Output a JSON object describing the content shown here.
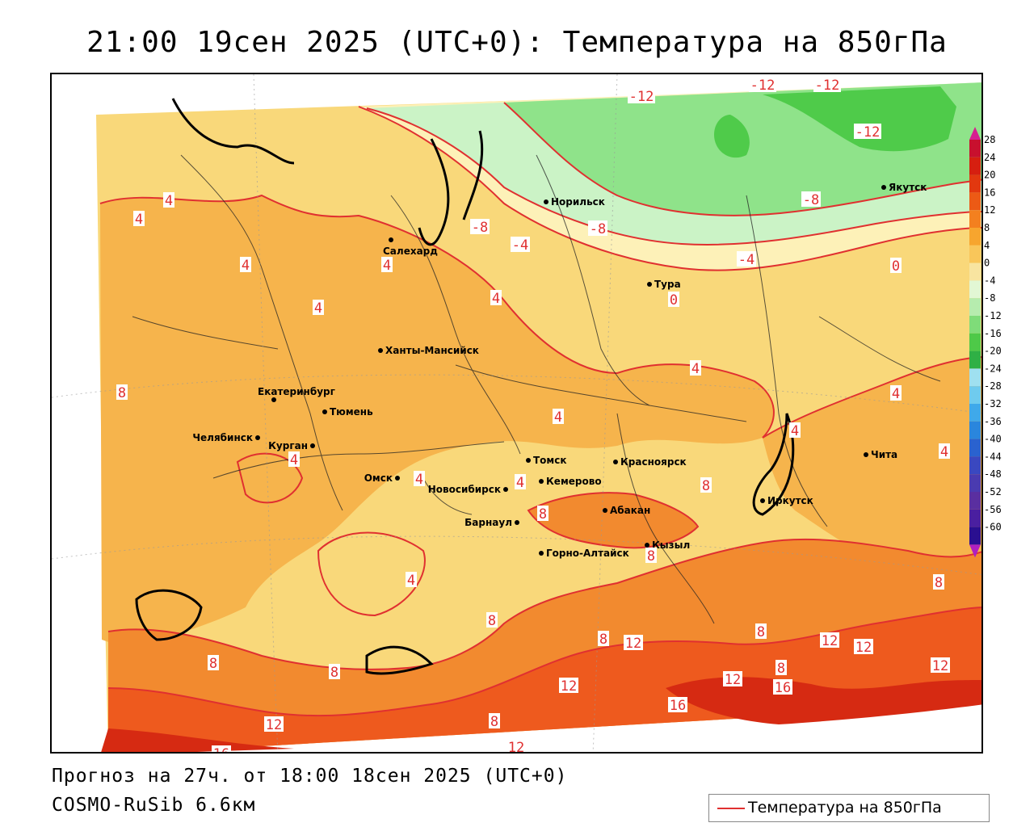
{
  "title": "21:00 19сен 2025 (UTC+0): Температура на 850гПа",
  "footer": {
    "forecast": "Прогноз на 27ч. от 18:00 18сен 2025 (UTC+0)",
    "model": "COSMO-RuSib 6.6км"
  },
  "legend": {
    "label": "Температура на 850гПа",
    "line_color": "#e03030"
  },
  "colors": {
    "warm_4": "#f9d87a",
    "warm_8": "#f6b44c",
    "warm_12": "#f28a2f",
    "warm_16": "#ee5a1e",
    "warm_20": "#d62a12",
    "cold_0": "#fdf1b8",
    "cold_m4": "#cbf3c6",
    "cold_m8": "#8fe38a",
    "cold_m12": "#4fcb4a",
    "isotherm": "#e03030"
  },
  "color_scale": {
    "ticks": [
      "28",
      "24",
      "20",
      "16",
      "12",
      "8",
      "4",
      "0",
      "-4",
      "-8",
      "-12",
      "-16",
      "-20",
      "-24",
      "-28",
      "-32",
      "-36",
      "-40",
      "-44",
      "-48",
      "-52",
      "-56",
      "-60"
    ],
    "colors": [
      "#c8102e",
      "#d61f10",
      "#e2380f",
      "#ec5a15",
      "#f3801f",
      "#f7a52e",
      "#f9c65a",
      "#f8e4a0",
      "#e2f7d4",
      "#b6ecae",
      "#7fdc79",
      "#4ec948",
      "#2fb045",
      "#9fe0f0",
      "#6fcbee",
      "#3fa9ea",
      "#2a86dd",
      "#2a62cf",
      "#3a48c0",
      "#4a3bb0",
      "#5a2fa0",
      "#4a1fa0",
      "#2a0f90"
    ]
  },
  "cities": [
    {
      "name": "Якутск"
    },
    {
      "name": "Норильск"
    },
    {
      "name": "Салехард"
    },
    {
      "name": "Тура"
    },
    {
      "name": "Ханты-Мансийск"
    },
    {
      "name": "Екатеринбург"
    },
    {
      "name": "Тюмень"
    },
    {
      "name": "Челябинск"
    },
    {
      "name": "Курган"
    },
    {
      "name": "Омск"
    },
    {
      "name": "Новосибирск"
    },
    {
      "name": "Томск"
    },
    {
      "name": "Кемерово"
    },
    {
      "name": "Красноярск"
    },
    {
      "name": "Барнаул"
    },
    {
      "name": "Абакан"
    },
    {
      "name": "Горно-Алтайск"
    },
    {
      "name": "Кызыл"
    },
    {
      "name": "Иркутск"
    },
    {
      "name": "Чита"
    }
  ],
  "isotherm_labels": [
    "-12",
    "-12",
    "-12",
    "-12",
    "-8",
    "-8",
    "-8",
    "-4",
    "-4",
    "0",
    "0",
    "4",
    "4",
    "4",
    "4",
    "4",
    "4",
    "4",
    "4",
    "4",
    "4",
    "4",
    "4",
    "4",
    "4",
    "4",
    "8",
    "8",
    "8",
    "8",
    "8",
    "8",
    "8",
    "8",
    "8",
    "8",
    "8",
    "8",
    "12",
    "12",
    "12",
    "12",
    "12",
    "12",
    "12",
    "12",
    "16",
    "16",
    "16"
  ]
}
